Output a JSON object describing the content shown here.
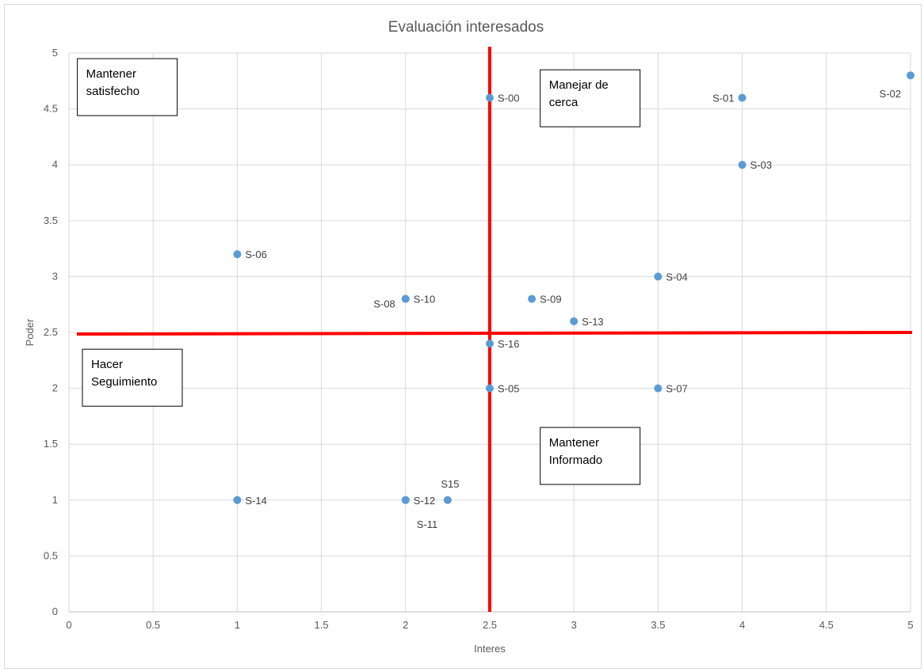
{
  "chart_data": {
    "type": "scatter",
    "title": "Evaluación interesados",
    "xlabel": "Interes",
    "ylabel": "Poder",
    "xlim": [
      0,
      5
    ],
    "ylim": [
      0,
      5
    ],
    "x_ticks": [
      "0",
      "0.5",
      "1",
      "1.5",
      "2",
      "2.5",
      "3",
      "3.5",
      "4",
      "4.5",
      "5"
    ],
    "y_ticks": [
      "0",
      "0.5",
      "1",
      "1.5",
      "2",
      "2.5",
      "3",
      "3.5",
      "4",
      "4.5",
      "5"
    ],
    "grid": true,
    "marker_color": "#5b9bd5",
    "divider_color": "#ff0000",
    "dividers": {
      "x": 2.5,
      "y": 2.5
    },
    "points": [
      {
        "x": 2.5,
        "y": 4.6,
        "label": "S-00",
        "label_pos": "right"
      },
      {
        "x": 4,
        "y": 4.6,
        "label": "S-01",
        "label_pos": "left"
      },
      {
        "x": 5,
        "y": 4.8,
        "label": "S-02",
        "label_pos": "below-left"
      },
      {
        "x": 4,
        "y": 4,
        "label": "S-03",
        "label_pos": "right"
      },
      {
        "x": 3.5,
        "y": 3,
        "label": "S-04",
        "label_pos": "right"
      },
      {
        "x": 2.5,
        "y": 2,
        "label": "S-05",
        "label_pos": "right"
      },
      {
        "x": 1,
        "y": 3.2,
        "label": "S-06",
        "label_pos": "right"
      },
      {
        "x": 3.5,
        "y": 2,
        "label": "S-07",
        "label_pos": "right"
      },
      {
        "x": 2,
        "y": 2.8,
        "label": "S-08",
        "label_pos": "below-left"
      },
      {
        "x": 2.75,
        "y": 2.8,
        "label": "S-09",
        "label_pos": "right"
      },
      {
        "x": 2,
        "y": 2.8,
        "label": "S-10",
        "label_pos": "right"
      },
      {
        "x": 2,
        "y": 1,
        "label": "S-11",
        "label_pos": "below-right"
      },
      {
        "x": 2,
        "y": 1,
        "label": "S-12",
        "label_pos": "right"
      },
      {
        "x": 3,
        "y": 2.6,
        "label": "S-13",
        "label_pos": "right"
      },
      {
        "x": 1,
        "y": 1,
        "label": "S-14",
        "label_pos": "right"
      },
      {
        "x": 2.25,
        "y": 1,
        "label": "S15",
        "label_pos": "above"
      },
      {
        "x": 2.5,
        "y": 2.4,
        "label": "S-16",
        "label_pos": "right"
      }
    ],
    "quadrant_labels": [
      {
        "text": [
          "Mantener",
          "satisfecho"
        ],
        "anchor": [
          0.05,
          4.95
        ]
      },
      {
        "text": [
          "Manejar de",
          "cerca"
        ],
        "anchor": [
          2.8,
          4.85
        ]
      },
      {
        "text": [
          "Hacer",
          "Seguimiento"
        ],
        "anchor": [
          0.08,
          2.35
        ]
      },
      {
        "text": [
          "Mantener",
          "Informado"
        ],
        "anchor": [
          2.8,
          1.65
        ]
      }
    ]
  }
}
